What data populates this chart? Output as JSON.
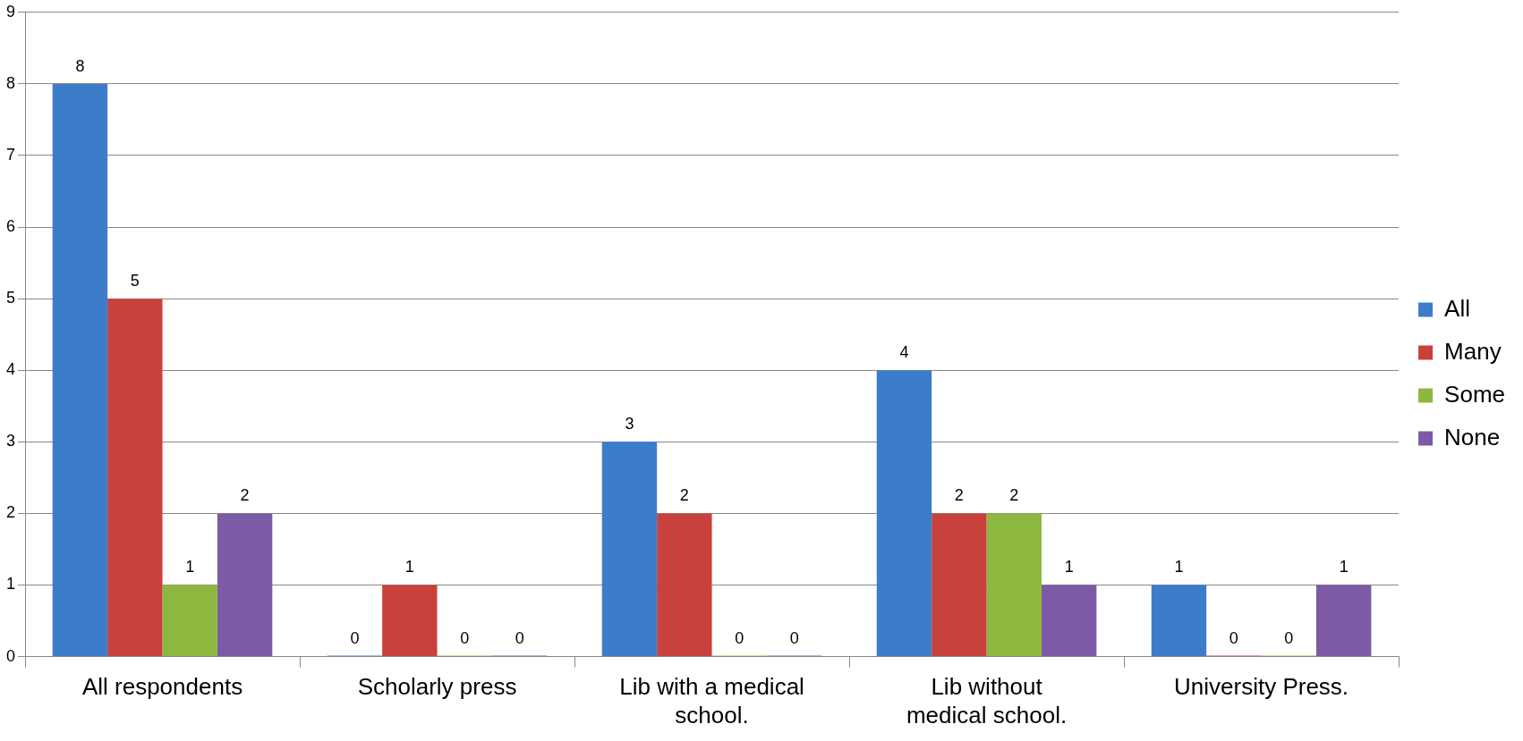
{
  "chart_data": {
    "type": "bar",
    "categories": [
      "All respondents",
      "Scholarly press",
      "Lib with a medical school.",
      "Lib without medical school.",
      "University Press."
    ],
    "series": [
      {
        "name": "All",
        "color": "#3d7cc9",
        "values": [
          8,
          0,
          3,
          4,
          1
        ]
      },
      {
        "name": "Many",
        "color": "#c8413c",
        "values": [
          5,
          1,
          2,
          2,
          0
        ]
      },
      {
        "name": "Some",
        "color": "#8db83f",
        "values": [
          1,
          0,
          0,
          2,
          0
        ]
      },
      {
        "name": "None",
        "color": "#7c5aa6",
        "values": [
          2,
          0,
          0,
          1,
          1
        ]
      }
    ],
    "ylim": [
      0,
      9
    ],
    "yticks": [
      0,
      1,
      2,
      3,
      4,
      5,
      6,
      7,
      8,
      9
    ],
    "grid": "y",
    "legend": "right",
    "data_labels": true
  }
}
